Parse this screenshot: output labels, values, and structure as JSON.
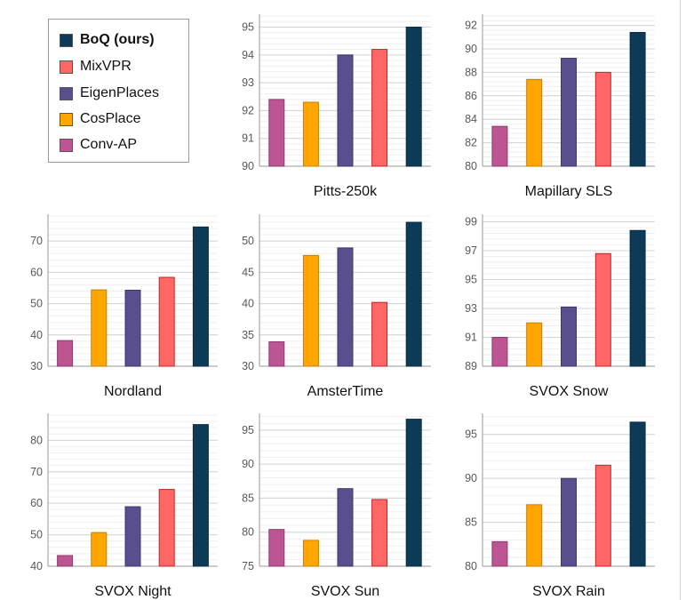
{
  "legend": {
    "items": [
      {
        "label": "BoQ (ours)",
        "color": "#0d3a57",
        "bold": true
      },
      {
        "label": "MixVPR",
        "color": "#ff6666"
      },
      {
        "label": "EigenPlaces",
        "color": "#5a4f8e"
      },
      {
        "label": "CosPlace",
        "color": "#ffa600"
      },
      {
        "label": "Conv-AP",
        "color": "#bd5592"
      }
    ]
  },
  "chart_data": [
    {
      "type": "bar",
      "title": "Pitts-250k",
      "ylim": [
        90,
        95.4
      ],
      "yticks": [
        90,
        91,
        92,
        93,
        94,
        95
      ],
      "series": [
        {
          "name": "Conv-AP",
          "values": [
            92.4
          ]
        },
        {
          "name": "CosPlace",
          "values": [
            92.3
          ]
        },
        {
          "name": "EigenPlaces",
          "values": [
            94.0
          ]
        },
        {
          "name": "MixVPR",
          "values": [
            94.2
          ]
        },
        {
          "name": "BoQ (ours)",
          "values": [
            95.0
          ]
        }
      ]
    },
    {
      "type": "bar",
      "title": "Mapillary SLS",
      "ylim": [
        80,
        92.8
      ],
      "yticks": [
        80,
        82,
        84,
        86,
        88,
        90,
        92
      ],
      "series": [
        {
          "name": "Conv-AP",
          "values": [
            83.4
          ]
        },
        {
          "name": "CosPlace",
          "values": [
            87.4
          ]
        },
        {
          "name": "EigenPlaces",
          "values": [
            89.2
          ]
        },
        {
          "name": "MixVPR",
          "values": [
            88.0
          ]
        },
        {
          "name": "BoQ (ours)",
          "values": [
            91.4
          ]
        }
      ]
    },
    {
      "type": "bar",
      "title": "Nordland",
      "ylim": [
        30,
        78
      ],
      "yticks": [
        30,
        40,
        50,
        60,
        70
      ],
      "series": [
        {
          "name": "Conv-AP",
          "values": [
            38.2
          ]
        },
        {
          "name": "CosPlace",
          "values": [
            54.4
          ]
        },
        {
          "name": "EigenPlaces",
          "values": [
            54.3
          ]
        },
        {
          "name": "MixVPR",
          "values": [
            58.4
          ]
        },
        {
          "name": "BoQ (ours)",
          "values": [
            74.5
          ]
        }
      ]
    },
    {
      "type": "bar",
      "title": "AmsterTime",
      "ylim": [
        30,
        54
      ],
      "yticks": [
        30,
        35,
        40,
        45,
        50
      ],
      "series": [
        {
          "name": "Conv-AP",
          "values": [
            33.9
          ]
        },
        {
          "name": "CosPlace",
          "values": [
            47.7
          ]
        },
        {
          "name": "EigenPlaces",
          "values": [
            48.9
          ]
        },
        {
          "name": "MixVPR",
          "values": [
            40.2
          ]
        },
        {
          "name": "BoQ (ours)",
          "values": [
            53.0
          ]
        }
      ]
    },
    {
      "type": "bar",
      "title": "SVOX Snow",
      "ylim": [
        89,
        99.4
      ],
      "yticks": [
        89,
        91,
        93,
        95,
        97,
        99
      ],
      "series": [
        {
          "name": "Conv-AP",
          "values": [
            91.0
          ]
        },
        {
          "name": "CosPlace",
          "values": [
            92.0
          ]
        },
        {
          "name": "EigenPlaces",
          "values": [
            93.1
          ]
        },
        {
          "name": "MixVPR",
          "values": [
            96.8
          ]
        },
        {
          "name": "BoQ (ours)",
          "values": [
            98.4
          ]
        }
      ]
    },
    {
      "type": "bar",
      "title": "SVOX Night",
      "ylim": [
        40,
        88
      ],
      "yticks": [
        40,
        50,
        60,
        70,
        80
      ],
      "series": [
        {
          "name": "Conv-AP",
          "values": [
            43.4
          ]
        },
        {
          "name": "CosPlace",
          "values": [
            50.7
          ]
        },
        {
          "name": "EigenPlaces",
          "values": [
            58.9
          ]
        },
        {
          "name": "MixVPR",
          "values": [
            64.4
          ]
        },
        {
          "name": "BoQ (ours)",
          "values": [
            85.0
          ]
        }
      ]
    },
    {
      "type": "bar",
      "title": "SVOX Sun",
      "ylim": [
        75,
        97.2
      ],
      "yticks": [
        75,
        80,
        85,
        90,
        95
      ],
      "series": [
        {
          "name": "Conv-AP",
          "values": [
            80.4
          ]
        },
        {
          "name": "CosPlace",
          "values": [
            78.8
          ]
        },
        {
          "name": "EigenPlaces",
          "values": [
            86.4
          ]
        },
        {
          "name": "MixVPR",
          "values": [
            84.8
          ]
        },
        {
          "name": "BoQ (ours)",
          "values": [
            96.6
          ]
        }
      ]
    },
    {
      "type": "bar",
      "title": "SVOX Rain",
      "ylim": [
        80,
        97.2
      ],
      "yticks": [
        80,
        85,
        90,
        95
      ],
      "series": [
        {
          "name": "Conv-AP",
          "values": [
            82.8
          ]
        },
        {
          "name": "CosPlace",
          "values": [
            87.0
          ]
        },
        {
          "name": "EigenPlaces",
          "values": [
            90.0
          ]
        },
        {
          "name": "MixVPR",
          "values": [
            91.5
          ]
        },
        {
          "name": "BoQ (ours)",
          "values": [
            96.4
          ]
        }
      ]
    }
  ]
}
